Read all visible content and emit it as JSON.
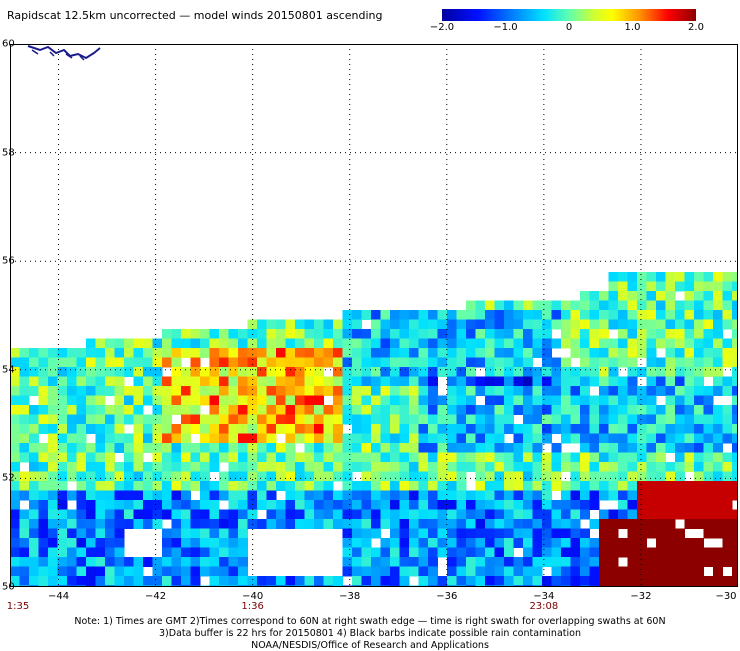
{
  "title": "Rapidscat 12.5km uncorrected — model winds 20150801 ascending",
  "colorbar": {
    "ticks": [
      {
        "label": "−2.0",
        "value": -2.0
      },
      {
        "label": "−1.0",
        "value": -1.0
      },
      {
        "label": "0",
        "value": 0
      },
      {
        "label": "1.0",
        "value": 1.0
      },
      {
        "label": "2.0",
        "value": 2.0
      }
    ],
    "range": [
      -2.0,
      2.0
    ]
  },
  "map": {
    "lon_range": [
      -45,
      -30
    ],
    "lat_range": [
      50,
      60
    ],
    "lat_ticks": [
      {
        "label": "60",
        "value": 60
      },
      {
        "label": "58",
        "value": 58
      },
      {
        "label": "56",
        "value": 56
      },
      {
        "label": "54",
        "value": 54
      },
      {
        "label": "52",
        "value": 52
      },
      {
        "label": "50",
        "value": 50
      }
    ],
    "lon_ticks": [
      {
        "label": "−44",
        "value": -44
      },
      {
        "label": "−42",
        "value": -42
      },
      {
        "label": "−40",
        "value": -40
      },
      {
        "label": "−38",
        "value": -38
      },
      {
        "label": "−36",
        "value": -36
      },
      {
        "label": "−34",
        "value": -34
      },
      {
        "label": "−32",
        "value": -32
      },
      {
        "label": "−30",
        "value": -30
      }
    ],
    "times": [
      {
        "label": "1:35",
        "lon": -45
      },
      {
        "label": "1:36",
        "lon": -40
      },
      {
        "label": "23:08",
        "lon": -34
      }
    ]
  },
  "notes": {
    "line1": "Note: 1) Times are GMT 2)Times correspond to 60N at right swath edge — time is right swath for overlapping swaths at 60N",
    "line2": "3)Data buffer is 22 hrs for 20150801 4) Black barbs indicate possible rain contamination",
    "line3": "NOAA/NESDIS/Office of Research and Applications"
  }
}
